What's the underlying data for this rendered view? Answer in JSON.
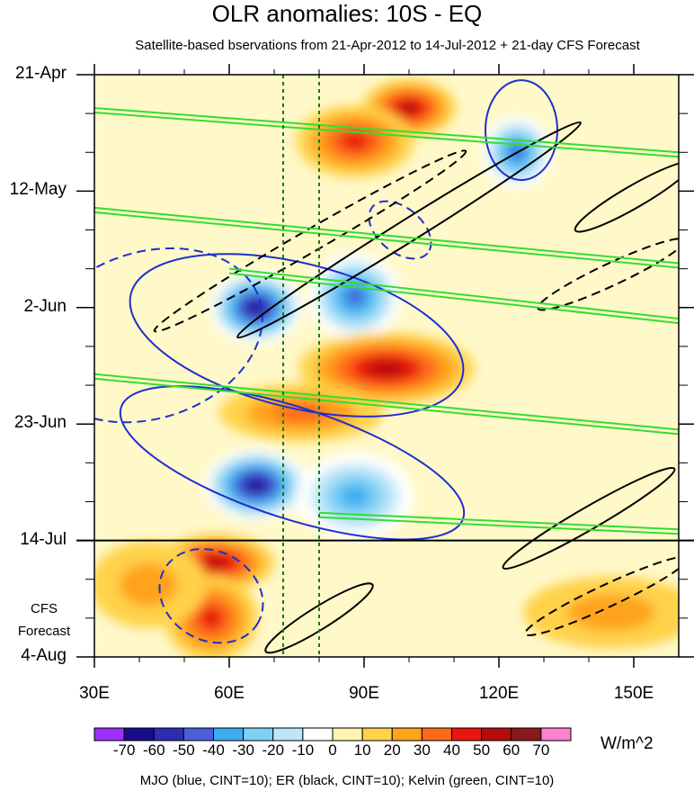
{
  "chart_data": {
    "type": "heatmap",
    "title": "OLR anomalies: 10S - EQ",
    "subtitle": "Satellite-based bservations from 21-Apr-2012 to 14-Jul-2012 + 21-day CFS Forecast",
    "x_ticks": [
      {
        "value": 30,
        "label": "30E"
      },
      {
        "value": 60,
        "label": "60E"
      },
      {
        "value": 90,
        "label": "90E"
      },
      {
        "value": 120,
        "label": "120E"
      },
      {
        "value": 150,
        "label": "150E"
      }
    ],
    "xlim": [
      30,
      160
    ],
    "ylim_days": [
      0,
      105
    ],
    "y_ticks": [
      {
        "day": 0,
        "label": "21-Apr"
      },
      {
        "day": 21,
        "label": "12-May"
      },
      {
        "day": 42,
        "label": "2-Jun"
      },
      {
        "day": 63,
        "label": "23-Jun"
      },
      {
        "day": 84,
        "label": "14-Jul"
      },
      {
        "day": 105,
        "label": "4-Aug"
      }
    ],
    "forecast_start_day": 84,
    "forecast_label": [
      "CFS",
      "Forecast"
    ],
    "reference_lines_lon": [
      72,
      80
    ],
    "colorbar": {
      "levels": [
        "-70",
        "-60",
        "-50",
        "-40",
        "-30",
        "-20",
        "-10",
        "0",
        "10",
        "20",
        "30",
        "40",
        "50",
        "60",
        "70"
      ],
      "colors": [
        "#9b30ff",
        "#1a0a8c",
        "#2d2db4",
        "#4a5fd8",
        "#3aaef0",
        "#7fd0f5",
        "#bde6f8",
        "#ffffff",
        "#fff3b0",
        "#ffd24a",
        "#ffa31c",
        "#ff6a1a",
        "#e8160f",
        "#b30c0c",
        "#8a1a1a",
        "#ff7fd0"
      ],
      "units": "W/m^2"
    },
    "anomaly_features": [
      {
        "lon": 100,
        "day": 6,
        "value": 45,
        "r_lon": 8,
        "r_day": 4
      },
      {
        "lon": 88,
        "day": 12,
        "value": 40,
        "r_lon": 10,
        "r_day": 5
      },
      {
        "lon": 124,
        "day": 14,
        "value": -45,
        "r_lon": 6,
        "r_day": 5
      },
      {
        "lon": 66,
        "day": 42,
        "value": -65,
        "r_lon": 8,
        "r_day": 5
      },
      {
        "lon": 88,
        "day": 40,
        "value": -50,
        "r_lon": 8,
        "r_day": 6
      },
      {
        "lon": 95,
        "day": 53,
        "value": 50,
        "r_lon": 15,
        "r_day": 5
      },
      {
        "lon": 76,
        "day": 61,
        "value": 25,
        "r_lon": 14,
        "r_day": 4
      },
      {
        "lon": 66,
        "day": 74,
        "value": -70,
        "r_lon": 9,
        "r_day": 5
      },
      {
        "lon": 88,
        "day": 76,
        "value": -40,
        "r_lon": 10,
        "r_day": 6
      },
      {
        "lon": 57,
        "day": 88,
        "value": 45,
        "r_lon": 10,
        "r_day": 4
      },
      {
        "lon": 56,
        "day": 98,
        "value": 35,
        "r_lon": 8,
        "r_day": 6
      },
      {
        "lon": 42,
        "day": 92,
        "value": 20,
        "r_lon": 10,
        "r_day": 6
      },
      {
        "lon": 145,
        "day": 97,
        "value": 22,
        "r_lon": 15,
        "r_day": 5
      }
    ],
    "contours": {
      "mjo": [
        {
          "lon": 42,
          "day": 47,
          "a_lon": 26,
          "a_day": 15,
          "angle": -18,
          "style": "dashed"
        },
        {
          "lon": 74,
          "day": 70,
          "a_lon": 40,
          "a_day": 10,
          "angle": 18,
          "style": "solid"
        },
        {
          "lon": 75,
          "day": 47,
          "a_lon": 38,
          "a_day": 13,
          "angle": 14,
          "style": "solid"
        },
        {
          "lon": 56,
          "day": 94,
          "a_lon": 12,
          "a_day": 8,
          "angle": 30,
          "style": "dashed"
        },
        {
          "lon": 125,
          "day": 10,
          "a_lon": 8,
          "a_day": 9,
          "angle": 0,
          "style": "solid"
        },
        {
          "lon": 98,
          "day": 28,
          "a_lon": 8,
          "a_day": 4,
          "angle": 40,
          "style": "dashed"
        }
      ],
      "er": [
        {
          "lon": 78,
          "day": 30,
          "a_lon": 40,
          "a_day": 2,
          "angle": -30,
          "style": "dashed"
        },
        {
          "lon": 100,
          "day": 28,
          "a_lon": 45,
          "a_day": 2,
          "angle": -32,
          "style": "solid"
        },
        {
          "lon": 145,
          "day": 36,
          "a_lon": 18,
          "a_day": 2,
          "angle": -25,
          "style": "dashed"
        },
        {
          "lon": 150,
          "day": 22,
          "a_lon": 15,
          "a_day": 2,
          "angle": -30,
          "style": "solid"
        },
        {
          "lon": 140,
          "day": 80,
          "a_lon": 22,
          "a_day": 2,
          "angle": -30,
          "style": "solid"
        },
        {
          "lon": 144,
          "day": 94,
          "a_lon": 20,
          "a_day": 2,
          "angle": -25,
          "style": "dashed"
        },
        {
          "lon": 80,
          "day": 98,
          "a_lon": 14,
          "a_day": 2,
          "angle": -32,
          "style": "solid"
        }
      ],
      "kelvin_lines": [
        {
          "lon1": 30,
          "day1": 6,
          "lon2": 160,
          "day2": 14
        },
        {
          "lon1": 30,
          "day1": 24,
          "lon2": 160,
          "day2": 34
        },
        {
          "lon1": 60,
          "day1": 35,
          "lon2": 160,
          "day2": 44
        },
        {
          "lon1": 30,
          "day1": 54,
          "lon2": 160,
          "day2": 64
        },
        {
          "lon1": 80,
          "day1": 79,
          "lon2": 160,
          "day2": 82
        }
      ]
    },
    "footer": "MJO (blue, CINT=10); ER (black, CINT=10); Kelvin (green, CINT=10)"
  }
}
